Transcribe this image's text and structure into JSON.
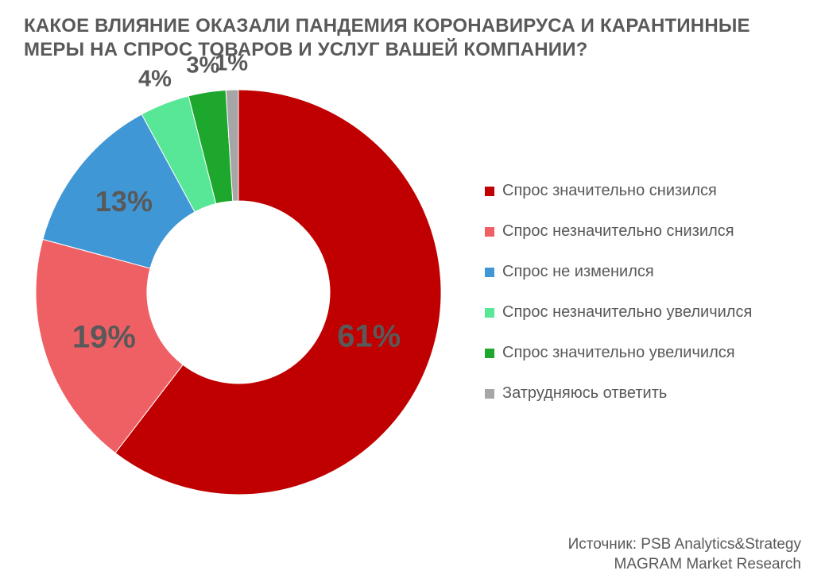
{
  "title_line1": "КАКОЕ ВЛИЯНИЕ ОКАЗАЛИ ПАНДЕМИЯ КОРОНАВИРУСА И КАРАНТИННЫЕ",
  "title_line2": "МЕРЫ НА СПРОС ТОВАРОВ И УСЛУГ ВАШЕЙ КОМПАНИИ?",
  "title_fontsize": 24,
  "title_color": "#595959",
  "source_line1": "Источник: PSB Analytics&Strategy",
  "source_line2": "MAGRAM Market Research",
  "chart": {
    "type": "donut",
    "start_angle_deg": 0,
    "outer_radius": 255,
    "inner_radius": 115,
    "background_color": "#ffffff",
    "label_fontsize_large": 40,
    "label_fontsize_med": 36,
    "label_fontsize_small": 29,
    "label_color": "#595959",
    "legend_fontsize": 20,
    "legend_gap": 28,
    "slices": [
      {
        "label": "Спрос значительно снизился",
        "value": 61,
        "text": "61%",
        "color": "#c00000",
        "label_pos": "inside",
        "label_size": "large",
        "label_radius_k": 0.68
      },
      {
        "label": "Спрос незначительно снизился",
        "value": 19,
        "text": "19%",
        "color": "#ef6065",
        "label_pos": "inside",
        "label_size": "large",
        "label_radius_k": 0.7
      },
      {
        "label": "Спрос не изменился",
        "value": 13,
        "text": "13%",
        "color": "#4097d6",
        "label_pos": "inside",
        "label_size": "med",
        "label_radius_k": 0.72
      },
      {
        "label": "Спрос незначительно увеличился",
        "value": 4,
        "text": "4%",
        "color": "#57e797",
        "label_pos": "outside",
        "label_size": "small",
        "label_radius_k": 1.13
      },
      {
        "label": "Спрос значительно увеличился",
        "value": 3,
        "text": "3%",
        "color": "#1da72d",
        "label_pos": "outside",
        "label_size": "small",
        "label_radius_k": 1.13
      },
      {
        "label": "Затрудняюсь ответить",
        "value": 1,
        "text": "1%",
        "color": "#a6a6a6",
        "label_pos": "outside",
        "label_size": "small",
        "label_radius_k": 1.13
      }
    ]
  }
}
